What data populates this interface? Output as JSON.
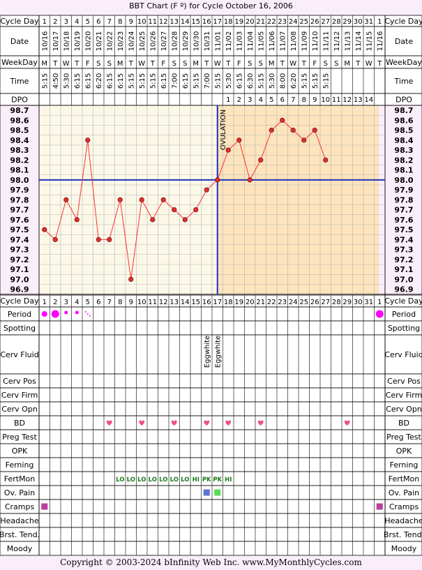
{
  "title": "BBT Chart (F º) for Cycle October 16, 2006",
  "footer": "Copyright © 2003-2024 bInfinity Web Inc.     www.MyMonthlyCycles.com",
  "row_labels": {
    "cycle_day": "Cycle Day",
    "date": "Date",
    "weekday": "WeekDay",
    "time": "Time",
    "dpo": "DPO"
  },
  "bottom_rows": [
    "Period",
    "Spotting",
    "Cerv Fluid",
    "Cerv Pos",
    "Cerv Firm",
    "Cerv Opn",
    "BD",
    "Preg Test",
    "OPK",
    "Ferning",
    "FertMon",
    "Ov. Pain",
    "Cramps",
    "Headache",
    "Brst. Tend.",
    "Moody"
  ],
  "cycle_days": [
    "1",
    "2",
    "3",
    "4",
    "5",
    "6",
    "7",
    "8",
    "9",
    "10",
    "11",
    "12",
    "13",
    "14",
    "15",
    "16",
    "17",
    "18",
    "19",
    "20",
    "21",
    "22",
    "23",
    "24",
    "25",
    "26",
    "27",
    "28",
    "29",
    "30",
    "31",
    "1"
  ],
  "dates": [
    "10/16",
    "10/17",
    "10/18",
    "10/19",
    "10/20",
    "10/21",
    "10/22",
    "10/23",
    "10/24",
    "10/25",
    "10/26",
    "10/27",
    "10/28",
    "10/29",
    "10/30",
    "10/31",
    "11/01",
    "11/02",
    "11/03",
    "11/04",
    "11/05",
    "11/06",
    "11/07",
    "11/08",
    "11/09",
    "11/10",
    "11/11",
    "11/12",
    "11/13",
    "11/14",
    "11/15",
    "11/16"
  ],
  "weekdays": [
    "M",
    "T",
    "W",
    "T",
    "F",
    "S",
    "S",
    "M",
    "T",
    "W",
    "T",
    "F",
    "S",
    "S",
    "M",
    "T",
    "W",
    "T",
    "F",
    "S",
    "S",
    "M",
    "T",
    "W",
    "T",
    "F",
    "S",
    "S",
    "M",
    "T",
    "W",
    "T"
  ],
  "times": [
    "5:15",
    "4:50",
    "5:30",
    "6:15",
    "6:15",
    "6:20",
    "6:15",
    "6:15",
    "5:15",
    "5:15",
    "5:15",
    "6:15",
    "7:00",
    "6:15",
    "5:15",
    "7:00",
    "5:15",
    "5:30",
    "6:15",
    "6:30",
    "5:15",
    "5:30",
    "8:00",
    "6:20",
    "5:15",
    "5:15",
    "5:15",
    "",
    "",
    "",
    "",
    ""
  ],
  "dpo": [
    "",
    "",
    "",
    "",
    "",
    "",
    "",
    "",
    "",
    "",
    "",
    "",
    "",
    "",
    "",
    "",
    "",
    "1",
    "2",
    "3",
    "4",
    "5",
    "6",
    "7",
    "8",
    "9",
    "10",
    "11",
    "12",
    "13",
    "14",
    ""
  ],
  "ovulation_label": "OVULATION",
  "cerv_fluid": {
    "16": "Eggwhite",
    "17": "Eggwhite"
  },
  "fertmon": [
    "",
    "",
    "",
    "",
    "",
    "",
    "",
    "LO",
    "LO",
    "LO",
    "LO",
    "LO",
    "LO",
    "LO",
    "HI",
    "PK",
    "PK",
    "HI",
    "",
    "",
    "",
    "",
    "",
    "",
    "",
    "",
    "",
    "",
    "",
    "",
    "",
    ""
  ],
  "colors": {
    "background": "#fbeefb",
    "pre_ovulation_fill": "#fcf8e8",
    "post_ovulation_fill": "#fde4bd",
    "grid": "#b4b4b4",
    "temp_line": "#ff3030",
    "temp_point": "#e03030",
    "coverline": "#1f2fb8",
    "ovulation_line": "#1f2fb8",
    "period": "#ff00ff",
    "bd_heart": "#ee4f8a",
    "fertmon_text": "#1c7a1c",
    "ov_pain_blue": "#5a73d6",
    "ov_pain_green": "#55dd55",
    "cramps": "#b83f9c"
  },
  "chart_data": {
    "type": "line",
    "title": "BBT Chart (F º) for Cycle October 16, 2006",
    "x": [
      1,
      2,
      3,
      4,
      5,
      6,
      7,
      8,
      9,
      10,
      11,
      12,
      13,
      14,
      15,
      16,
      17,
      18,
      19,
      20,
      21,
      22,
      23,
      24,
      25,
      26,
      27
    ],
    "values": [
      97.5,
      97.4,
      97.8,
      97.6,
      98.4,
      97.4,
      97.4,
      97.8,
      97.0,
      97.8,
      97.6,
      97.8,
      97.7,
      97.6,
      97.7,
      97.9,
      98.0,
      98.3,
      98.4,
      98.0,
      98.2,
      98.5,
      98.6,
      98.5,
      98.4,
      98.5,
      98.2
    ],
    "y_ticks": [
      "98.7",
      "98.6",
      "98.5",
      "98.4",
      "98.3",
      "98.2",
      "98.1",
      "98.0",
      "97.9",
      "97.8",
      "97.7",
      "97.6",
      "97.5",
      "97.4",
      "97.3",
      "97.2",
      "97.1",
      "97.0",
      "96.9"
    ],
    "ylim": [
      96.9,
      98.7
    ],
    "coverline": 98.0,
    "ovulation_day": 17,
    "period_days": [
      1,
      2,
      3,
      4,
      5,
      32
    ],
    "period_sizes": [
      "medium",
      "large",
      "small",
      "small",
      "spotting",
      "large"
    ],
    "bd_days": [
      7,
      10,
      13,
      16,
      18,
      21,
      29
    ],
    "ov_pain_days": [
      16,
      17
    ],
    "cramps_days": [
      1,
      32
    ],
    "grid": true
  }
}
